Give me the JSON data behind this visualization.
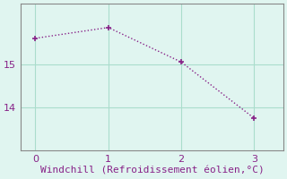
{
  "x": [
    0,
    1,
    2,
    3
  ],
  "y": [
    15.6,
    15.85,
    15.05,
    13.75
  ],
  "line_color": "#882288",
  "marker": "+",
  "marker_size": 5,
  "marker_color": "#882288",
  "bg_color": "#e0f5f0",
  "grid_color": "#aaddcc",
  "axis_color": "#888888",
  "tick_color": "#882288",
  "xlabel": "Windchill (Refroidissement éolien,°C)",
  "xlabel_fontsize": 8,
  "yticks": [
    14,
    15
  ],
  "xticks": [
    0,
    1,
    2,
    3
  ],
  "ylim": [
    13.0,
    16.4
  ],
  "xlim": [
    -0.2,
    3.4
  ],
  "linewidth": 1.0
}
